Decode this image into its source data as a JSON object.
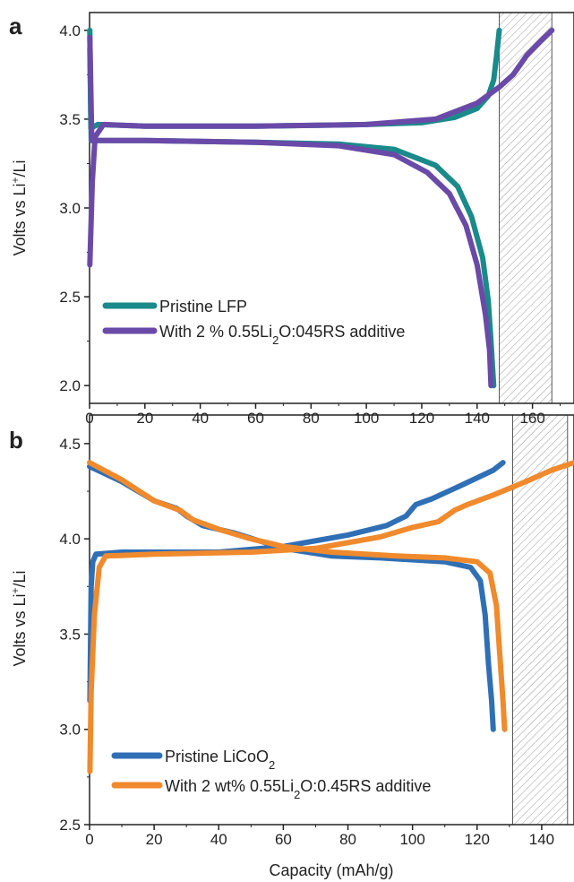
{
  "figure": {
    "xlabel": "Capacity (mAh/g)",
    "panels": [
      "a",
      "b"
    ]
  },
  "chart_data": [
    {
      "type": "line",
      "panel": "a",
      "ylabel": "Volts vs Li+/Li",
      "xlim": [
        0,
        175
      ],
      "ylim": [
        1.9,
        4.1
      ],
      "xticks": [
        "0",
        "20",
        "40",
        "60",
        "80",
        "100",
        "120",
        "140",
        "160"
      ],
      "yticks": [
        "2.0",
        "2.5",
        "3.0",
        "3.5",
        "4.0"
      ],
      "legend_position": "lower-left",
      "shaded_regions": [
        [
          148,
          167
        ]
      ],
      "colors": {
        "pristine": "#1a8a8a",
        "additive": "#6a4aa8"
      },
      "series": [
        {
          "name": "Pristine LFP",
          "color": "#1a8a8a",
          "charge": [
            [
              0.1,
              4.0
            ],
            [
              0.5,
              3.45
            ],
            [
              3,
              3.47
            ],
            [
              20,
              3.46
            ],
            [
              60,
              3.46
            ],
            [
              100,
              3.47
            ],
            [
              120,
              3.48
            ],
            [
              132,
              3.51
            ],
            [
              140,
              3.56
            ],
            [
              144,
              3.63
            ],
            [
              146,
              3.72
            ],
            [
              147,
              3.85
            ],
            [
              148,
              4.0
            ]
          ],
          "discharge": [
            [
              0.1,
              3.9
            ],
            [
              0.6,
              3.38
            ],
            [
              20,
              3.38
            ],
            [
              60,
              3.37
            ],
            [
              90,
              3.36
            ],
            [
              110,
              3.33
            ],
            [
              125,
              3.24
            ],
            [
              133,
              3.12
            ],
            [
              138,
              2.95
            ],
            [
              142,
              2.72
            ],
            [
              144,
              2.48
            ],
            [
              145,
              2.25
            ],
            [
              146,
              2.0
            ]
          ]
        },
        {
          "name": "With 2 % 0.55Li2O:045RS additive",
          "color": "#6a4aa8",
          "charge": [
            [
              0.1,
              2.68
            ],
            [
              1,
              3.15
            ],
            [
              2,
              3.4
            ],
            [
              5,
              3.47
            ],
            [
              20,
              3.46
            ],
            [
              60,
              3.46
            ],
            [
              100,
              3.47
            ],
            [
              125,
              3.5
            ],
            [
              140,
              3.59
            ],
            [
              148,
              3.68
            ],
            [
              153,
              3.75
            ],
            [
              158,
              3.86
            ],
            [
              163,
              3.94
            ],
            [
              167,
              4.0
            ]
          ],
          "discharge": [
            [
              0.1,
              3.96
            ],
            [
              0.8,
              3.38
            ],
            [
              20,
              3.38
            ],
            [
              60,
              3.37
            ],
            [
              90,
              3.35
            ],
            [
              110,
              3.3
            ],
            [
              122,
              3.2
            ],
            [
              130,
              3.08
            ],
            [
              136,
              2.9
            ],
            [
              140,
              2.68
            ],
            [
              143,
              2.4
            ],
            [
              144.5,
              2.2
            ],
            [
              145,
              2.0
            ]
          ]
        }
      ]
    },
    {
      "type": "line",
      "panel": "b",
      "ylabel": "Volts vs Li+/Li",
      "xlim": [
        0,
        150
      ],
      "ylim": [
        2.5,
        4.65
      ],
      "xticks": [
        "0",
        "20",
        "40",
        "60",
        "80",
        "100",
        "120",
        "140"
      ],
      "yticks": [
        "2.5",
        "3.0",
        "3.5",
        "4.0",
        "4.5"
      ],
      "legend_position": "lower-left",
      "shaded_regions": [
        [
          131,
          148
        ]
      ],
      "colors": {
        "pristine": "#2f6fb5",
        "additive": "#f08a2c"
      },
      "series": [
        {
          "name": "Pristine LiCoO2",
          "color": "#2f6fb5",
          "charge": [
            [
              0.1,
              3.15
            ],
            [
              0.5,
              3.75
            ],
            [
              1,
              3.88
            ],
            [
              2,
              3.92
            ],
            [
              10,
              3.93
            ],
            [
              40,
              3.93
            ],
            [
              60,
              3.96
            ],
            [
              80,
              4.02
            ],
            [
              92,
              4.07
            ],
            [
              98,
              4.12
            ],
            [
              101,
              4.18
            ],
            [
              106,
              4.21
            ],
            [
              115,
              4.28
            ],
            [
              125,
              4.36
            ],
            [
              128,
              4.4
            ]
          ],
          "discharge": [
            [
              0,
              4.38
            ],
            [
              10,
              4.3
            ],
            [
              20,
              4.2
            ],
            [
              27,
              4.16
            ],
            [
              30,
              4.12
            ],
            [
              35,
              4.07
            ],
            [
              45,
              4.03
            ],
            [
              60,
              3.95
            ],
            [
              75,
              3.91
            ],
            [
              90,
              3.9
            ],
            [
              110,
              3.88
            ],
            [
              118,
              3.85
            ],
            [
              121,
              3.78
            ],
            [
              122.5,
              3.6
            ],
            [
              123.5,
              3.35
            ],
            [
              124.5,
              3.15
            ],
            [
              125,
              3.0
            ]
          ]
        },
        {
          "name": "With 2 wt% 0.55Li2O:0.45RS additive",
          "color": "#f08a2c",
          "charge": [
            [
              0.1,
              2.78
            ],
            [
              0.5,
              3.2
            ],
            [
              1.5,
              3.6
            ],
            [
              3,
              3.85
            ],
            [
              5,
              3.91
            ],
            [
              20,
              3.92
            ],
            [
              50,
              3.93
            ],
            [
              70,
              3.95
            ],
            [
              90,
              4.01
            ],
            [
              100,
              4.06
            ],
            [
              108,
              4.09
            ],
            [
              113,
              4.15
            ],
            [
              117,
              4.18
            ],
            [
              125,
              4.23
            ],
            [
              135,
              4.3
            ],
            [
              143,
              4.36
            ],
            [
              150,
              4.4
            ]
          ],
          "discharge": [
            [
              0,
              4.4
            ],
            [
              10,
              4.31
            ],
            [
              20,
              4.2
            ],
            [
              28,
              4.15
            ],
            [
              32,
              4.1
            ],
            [
              40,
              4.05
            ],
            [
              50,
              4.0
            ],
            [
              60,
              3.96
            ],
            [
              75,
              3.93
            ],
            [
              95,
              3.91
            ],
            [
              110,
              3.9
            ],
            [
              120,
              3.88
            ],
            [
              124,
              3.82
            ],
            [
              126,
              3.65
            ],
            [
              127,
              3.4
            ],
            [
              128,
              3.15
            ],
            [
              128.5,
              3.0
            ]
          ]
        }
      ]
    }
  ]
}
